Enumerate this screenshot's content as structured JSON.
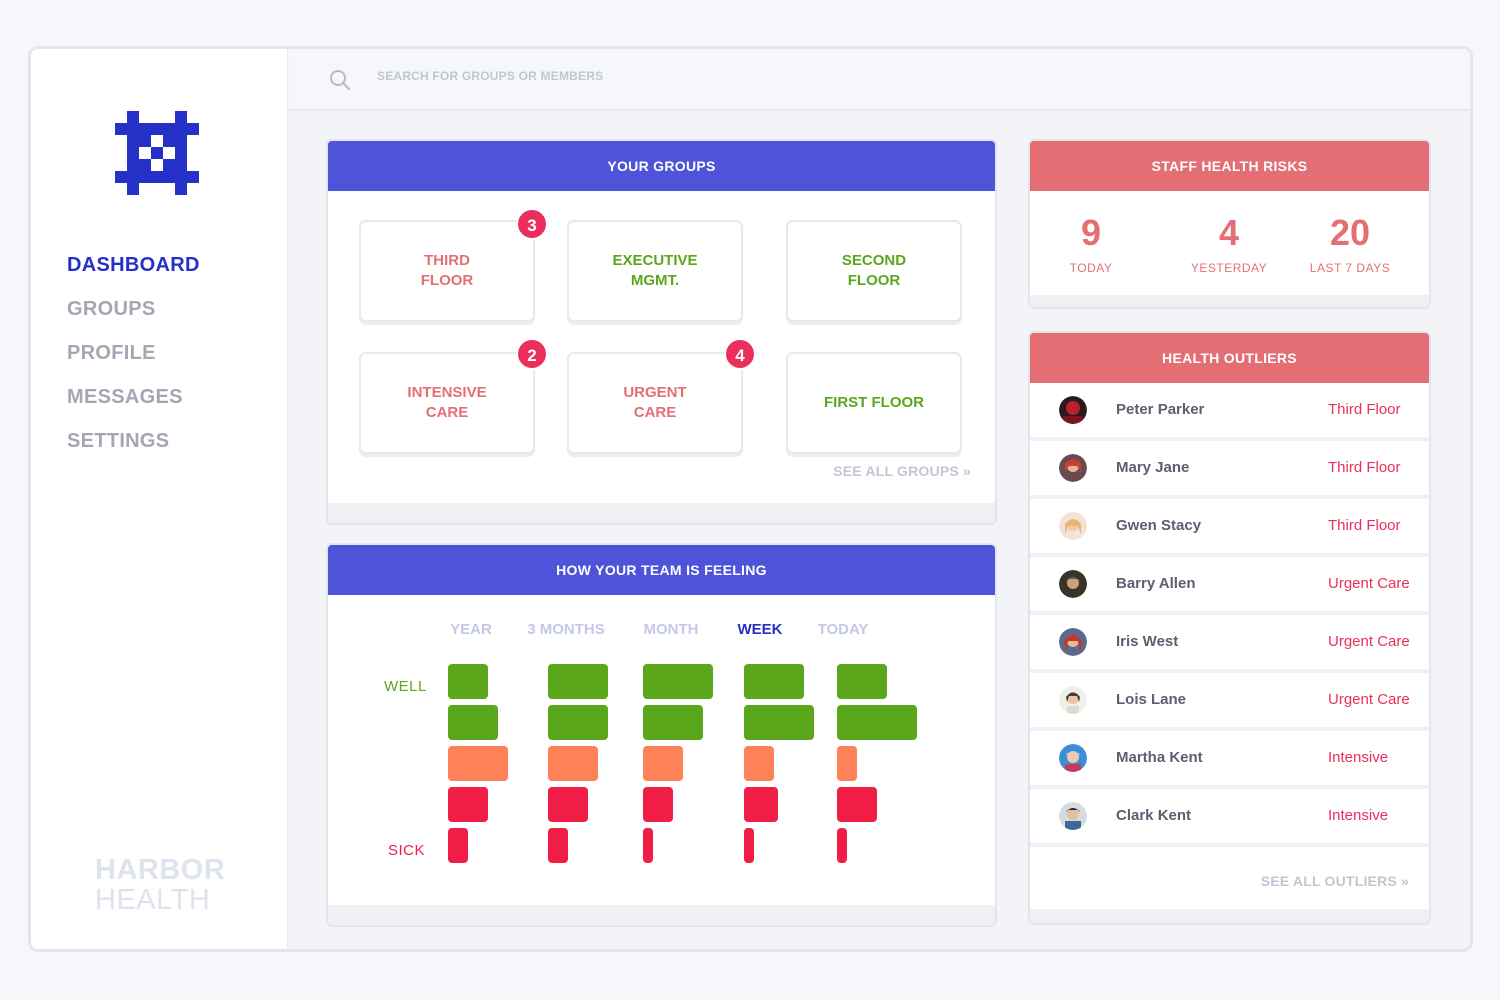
{
  "search": {
    "placeholder": "SEARCH FOR GROUPS OR MEMBERS"
  },
  "sidebar": {
    "nav": [
      "DASHBOARD",
      "GROUPS",
      "PROFILE",
      "MESSAGES",
      "SETTINGS"
    ],
    "active": "DASHBOARD",
    "brand_line1": "HARBOR",
    "brand_line2": "HEALTH"
  },
  "colors": {
    "accent": "#2530c7",
    "header_blue": "#4f53d9",
    "header_red": "#e36f74",
    "well": "#5ba71c",
    "mid": "#ff8159",
    "sick": "#f01e47"
  },
  "groups": {
    "title": "YOUR GROUPS",
    "see_all": "SEE ALL GROUPS »",
    "items": [
      {
        "line1": "THIRD",
        "line2": "FLOOR",
        "badge": "3"
      },
      {
        "line1": "EXECUTIVE",
        "line2": "MGMT.",
        "badge": ""
      },
      {
        "line1": "SECOND",
        "line2": "FLOOR",
        "badge": ""
      },
      {
        "line1": "INTENSIVE",
        "line2": "CARE",
        "badge": "2"
      },
      {
        "line1": "URGENT",
        "line2": "CARE",
        "badge": "4"
      },
      {
        "line1": "FIRST FLOOR",
        "line2": "",
        "badge": ""
      }
    ]
  },
  "feeling": {
    "title": "HOW YOUR TEAM IS FEELING",
    "tabs": [
      "YEAR",
      "3 MONTHS",
      "MONTH",
      "WEEK",
      "TODAY"
    ],
    "active_tab": "WEEK",
    "label_top": "WELL",
    "label_bottom": "SICK"
  },
  "chart_data": {
    "type": "bar",
    "categories": [
      "YEAR",
      "3 MONTHS",
      "MONTH",
      "WEEK",
      "TODAY"
    ],
    "series": [
      {
        "values": [
          2,
          3,
          3.5,
          3,
          2.5
        ]
      },
      {
        "values": [
          2.5,
          3,
          3,
          3.5,
          4
        ]
      },
      {
        "values": [
          3,
          2.5,
          2,
          1.5,
          1
        ]
      },
      {
        "values": [
          2,
          2,
          1.5,
          1.7,
          2
        ]
      },
      {
        "values": [
          1,
          1,
          0.5,
          0.5,
          0.5
        ]
      }
    ],
    "ylabel_top": "WELL",
    "ylabel_bottom": "SICK"
  },
  "risks": {
    "title": "STAFF HEALTH RISKS",
    "stats": [
      {
        "value": "9",
        "label": "TODAY"
      },
      {
        "value": "4",
        "label": "YESTERDAY"
      },
      {
        "value": "20",
        "label": "LAST 7 DAYS"
      }
    ]
  },
  "outliers": {
    "title": "HEALTH OUTLIERS",
    "see_all": "SEE ALL OUTLIERS »",
    "rows": [
      {
        "name": "Peter Parker",
        "group": "Third Floor"
      },
      {
        "name": "Mary Jane",
        "group": "Third Floor"
      },
      {
        "name": "Gwen Stacy",
        "group": "Third Floor"
      },
      {
        "name": "Barry Allen",
        "group": "Urgent Care"
      },
      {
        "name": "Iris West",
        "group": "Urgent Care"
      },
      {
        "name": "Lois Lane",
        "group": "Urgent Care"
      },
      {
        "name": "Martha Kent",
        "group": "Intensive"
      },
      {
        "name": "Clark Kent",
        "group": "Intensive"
      }
    ]
  }
}
